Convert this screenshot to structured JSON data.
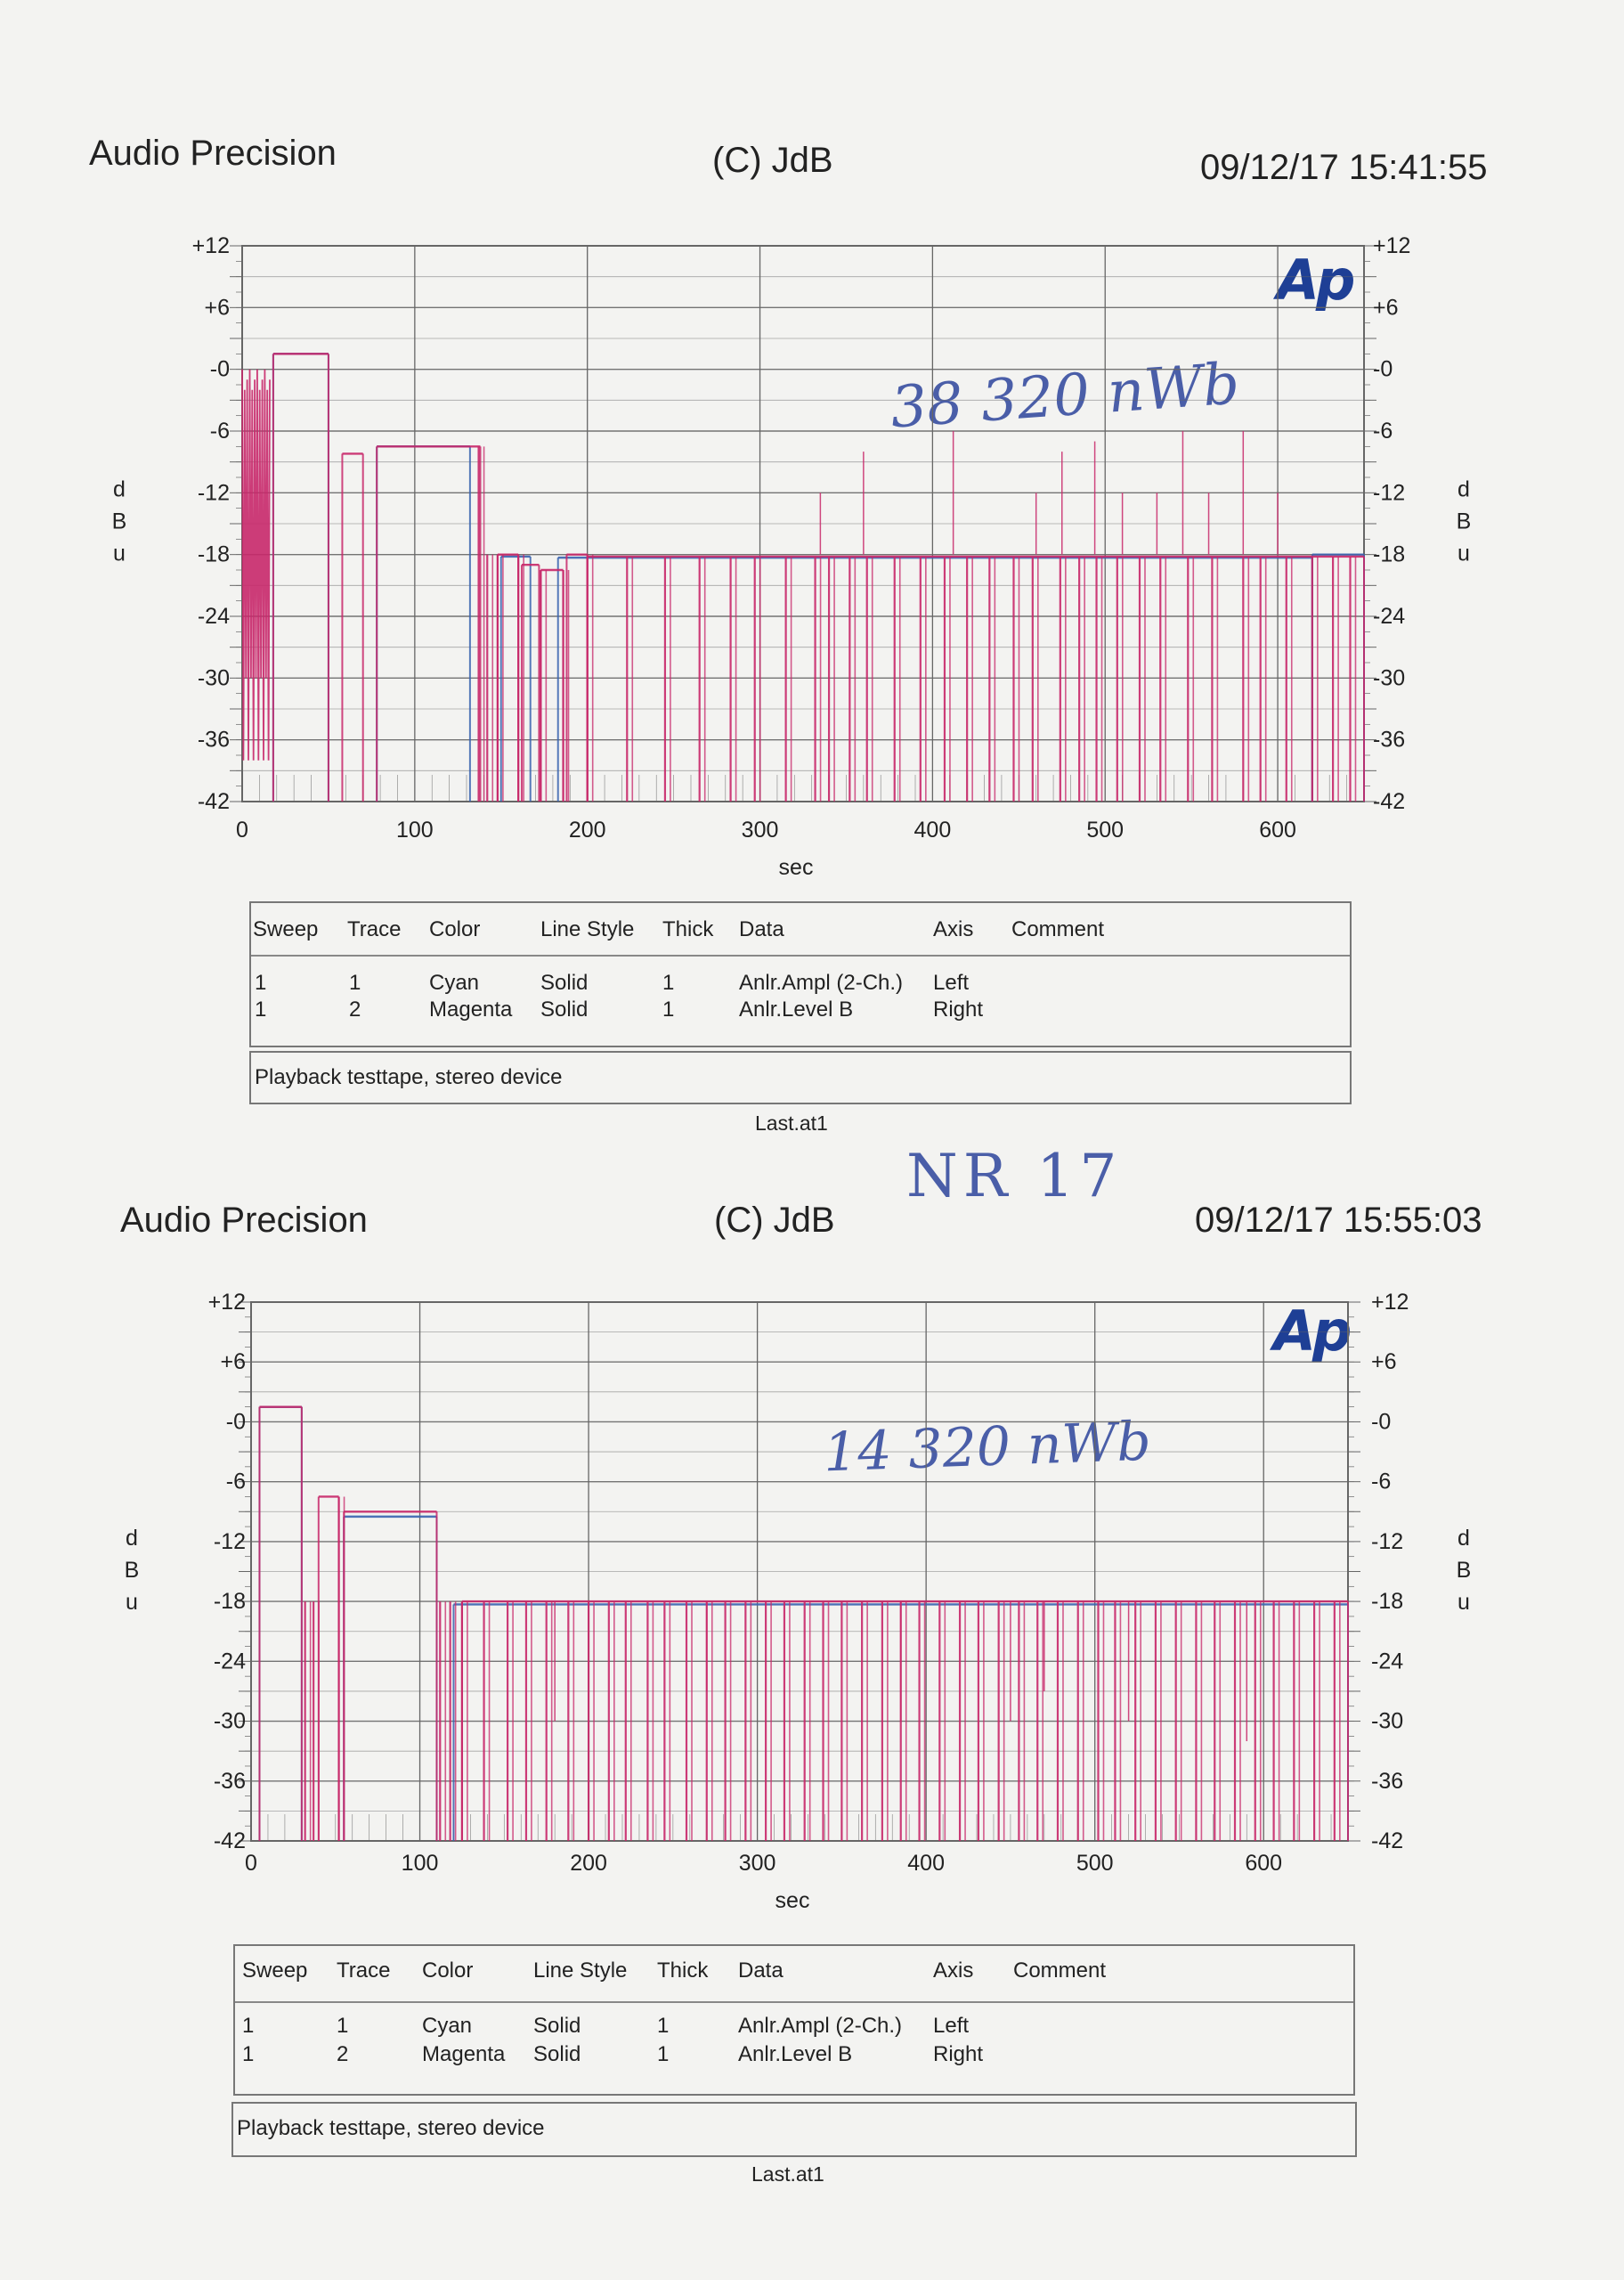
{
  "charts": [
    {
      "brand": "Audio Precision",
      "copyright": "(C) JdB",
      "timestamp": "09/12/17 15:41:55",
      "logo": "Ap",
      "handwriting": "38   320 nWb",
      "legend_headers": [
        "Sweep",
        "Trace",
        "Color",
        "Line Style",
        "Thick",
        "Data",
        "Axis",
        "Comment"
      ],
      "legend_rows": [
        [
          "1",
          "1",
          "Cyan",
          "Solid",
          "1",
          "Anlr.Ampl (2-Ch.)",
          "Left",
          ""
        ],
        [
          "1",
          "2",
          "Magenta",
          "Solid",
          "1",
          "Anlr.Level B",
          "Right",
          ""
        ]
      ],
      "comment": "Playback testtape, stereo device",
      "file": "Last.at1"
    },
    {
      "brand": "Audio Precision",
      "copyright": "(C) JdB",
      "timestamp": "09/12/17 15:55:03",
      "logo": "Ap",
      "handwriting": "14   320 nWb",
      "legend_headers": [
        "Sweep",
        "Trace",
        "Color",
        "Line Style",
        "Thick",
        "Data",
        "Axis",
        "Comment"
      ],
      "legend_rows": [
        [
          "1",
          "1",
          "Cyan",
          "Solid",
          "1",
          "Anlr.Ampl (2-Ch.)",
          "Left",
          ""
        ],
        [
          "1",
          "2",
          "Magenta",
          "Solid",
          "1",
          "Anlr.Level B",
          "Right",
          ""
        ]
      ],
      "comment": "Playback testtape, stereo device",
      "file": "Last.at1"
    }
  ],
  "note_between": "NR 17",
  "colors": {
    "magenta": "#c8286a",
    "cyan": "#3a64b0",
    "grid": "#666666",
    "paper": "#f3f3f1"
  },
  "chart_data": [
    {
      "type": "line",
      "xlabel": "sec",
      "ylabel": "dBu",
      "y2label": "dBu",
      "xlim": [
        0,
        650
      ],
      "ylim": [
        -42,
        12
      ],
      "xticks": [
        "0",
        "100",
        "200",
        "300",
        "400",
        "500",
        "600"
      ],
      "yticks": [
        "+12",
        "+6",
        "-0",
        "-6",
        "-12",
        "-18",
        "-24",
        "-30",
        "-36",
        "-42"
      ],
      "y2ticks": [
        "+12",
        "+6",
        "-0",
        "-6",
        "-12",
        "-18",
        "-24",
        "-30",
        "-36",
        "-42"
      ],
      "grid": true,
      "series": [
        {
          "name": "Cyan",
          "color": "cyan",
          "segments": [
            [
              18,
              50,
              1.5
            ],
            [
              78,
              132,
              -7.5
            ],
            [
              150,
              167,
              -18.2
            ],
            [
              183,
              620,
              -18.3
            ],
            [
              620,
              650,
              -18
            ]
          ]
        },
        {
          "name": "Magenta",
          "color": "magenta",
          "bursts": [
            [
              0,
              16,
              0,
              -6
            ]
          ],
          "segments": [
            [
              18,
              50,
              1.5
            ],
            [
              58,
              70,
              -8.2
            ],
            [
              78,
              138,
              -7.5
            ],
            [
              148,
              160,
              -18
            ],
            [
              162,
              172,
              -19
            ],
            [
              173,
              186,
              -19.5
            ],
            [
              188,
              200,
              -18
            ],
            [
              200,
              650,
              -18.2
            ]
          ],
          "gaps": [
            137,
            142,
            148,
            160,
            173,
            186,
            200,
            223,
            245,
            265,
            283,
            297,
            315,
            332,
            340,
            352,
            362,
            378,
            393,
            407,
            420,
            433,
            447,
            458,
            474,
            485,
            495,
            507,
            520,
            532,
            548,
            562,
            580,
            590,
            605,
            620,
            632,
            642
          ],
          "spikes": [
            [
              335,
              -12
            ],
            [
              360,
              -8
            ],
            [
              412,
              -6
            ],
            [
              460,
              -12
            ],
            [
              475,
              -8
            ],
            [
              494,
              -7
            ],
            [
              510,
              -12
            ],
            [
              530,
              -12
            ],
            [
              545,
              -6
            ],
            [
              560,
              -12
            ],
            [
              580,
              -6
            ],
            [
              600,
              -12
            ]
          ]
        }
      ]
    },
    {
      "type": "line",
      "xlabel": "sec",
      "ylabel": "dBu",
      "y2label": "dBu",
      "xlim": [
        0,
        650
      ],
      "ylim": [
        -42,
        12
      ],
      "xticks": [
        "0",
        "100",
        "200",
        "300",
        "400",
        "500",
        "600"
      ],
      "yticks": [
        "+12",
        "+6",
        "-0",
        "-6",
        "-12",
        "-18",
        "-24",
        "-30",
        "-36",
        "-42"
      ],
      "y2ticks": [
        "+12",
        "+6",
        "-0",
        "-6",
        "-12",
        "-18",
        "-24",
        "-30",
        "-36",
        "-42"
      ],
      "grid": true,
      "series": [
        {
          "name": "Cyan",
          "color": "cyan",
          "segments": [
            [
              5,
              30,
              1.5
            ],
            [
              55,
              110,
              -9.5
            ],
            [
              120,
              650,
              -18.3
            ]
          ]
        },
        {
          "name": "Magenta",
          "color": "magenta",
          "segments": [
            [
              5,
              30,
              1.5
            ],
            [
              40,
              52,
              -7.5
            ],
            [
              55,
              110,
              -9
            ],
            [
              125,
              650,
              -18
            ]
          ],
          "gaps": [
            32,
            37,
            52,
            112,
            118,
            125,
            138,
            152,
            163,
            175,
            188,
            200,
            212,
            222,
            235,
            245,
            258,
            270,
            281,
            293,
            305,
            316,
            328,
            339,
            350,
            362,
            374,
            385,
            396,
            408,
            420,
            431,
            443,
            455,
            466,
            478,
            490,
            502,
            512,
            524,
            536,
            548,
            560,
            571,
            583,
            595,
            606,
            618,
            630,
            642
          ],
          "spikes": [
            [
              180,
              -30
            ],
            [
              270,
              -27
            ],
            [
              385,
              -30
            ],
            [
              450,
              -30
            ],
            [
              470,
              -27
            ],
            [
              520,
              -30
            ],
            [
              590,
              -32
            ]
          ]
        }
      ]
    }
  ]
}
